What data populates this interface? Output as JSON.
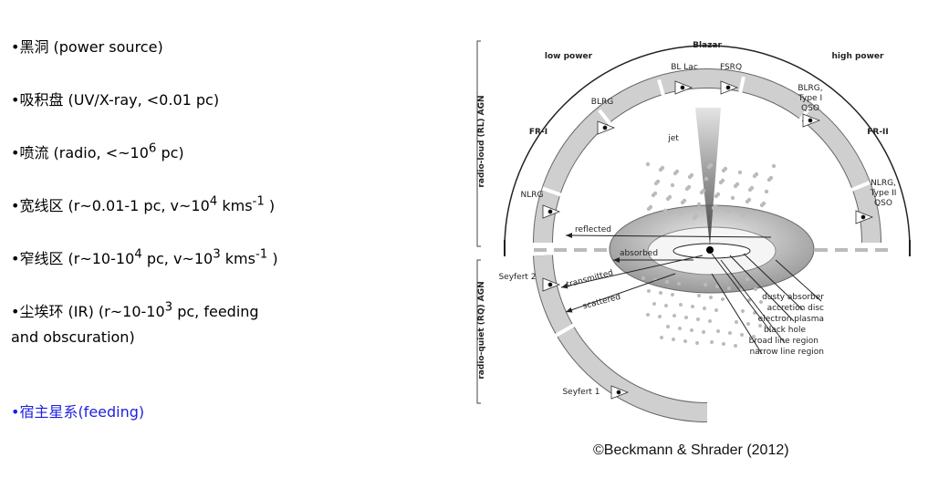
{
  "bullets": [
    {
      "parts": [
        {
          "text": "黑洞 (power source)"
        }
      ]
    },
    {
      "parts": [
        {
          "text": "吸积盘 (UV/X-ray, <0.01 pc)"
        }
      ]
    },
    {
      "parts": [
        {
          "text": "喷流 (radio, <~10"
        },
        {
          "sup": "6"
        },
        {
          "text": " pc)"
        }
      ]
    },
    {
      "parts": [
        {
          "text": "宽线区 (r~0.01-1 pc, v~10"
        },
        {
          "sup": "4"
        },
        {
          "text": " kms"
        },
        {
          "sup": "-1"
        },
        {
          "text": " )"
        }
      ]
    },
    {
      "parts": [
        {
          "text": "窄线区 (r~10-10"
        },
        {
          "sup": "4"
        },
        {
          "text": " pc, v~10"
        },
        {
          "sup": "3"
        },
        {
          "text": " kms"
        },
        {
          "sup": "-1"
        },
        {
          "text": " )"
        }
      ]
    },
    {
      "parts": [
        {
          "text": "尘埃环 (IR) (r~10-10"
        },
        {
          "sup": "3"
        },
        {
          "text": " pc, feeding"
        },
        {
          "line": "and obscuration)"
        }
      ]
    },
    {
      "parts": [
        {
          "text": "宿主星系(feeding)"
        }
      ],
      "color": "#1f1fe0"
    }
  ],
  "diagram": {
    "labels": [
      "Blazar",
      "low power",
      "high power",
      "BL Lac",
      "FSRQ",
      "BLRG",
      "BLRG,",
      "Type I",
      "QSO",
      "FR-I",
      "FR-II",
      "jet",
      "NLRG",
      "NLRG,",
      "Type II",
      "QSO",
      "reflected",
      "absorbed",
      "transmitted",
      "scattered",
      "Seyfert 2",
      "dusty absorber",
      "accretion disc",
      "electron plasma",
      "black hole",
      "broad line region",
      "narrow line region",
      "Seyfert 1",
      "radio-loud (RL) AGN",
      "radio-quiet (RQ) AGN"
    ],
    "caption": "©Beckmann & Shrader (2012)"
  }
}
